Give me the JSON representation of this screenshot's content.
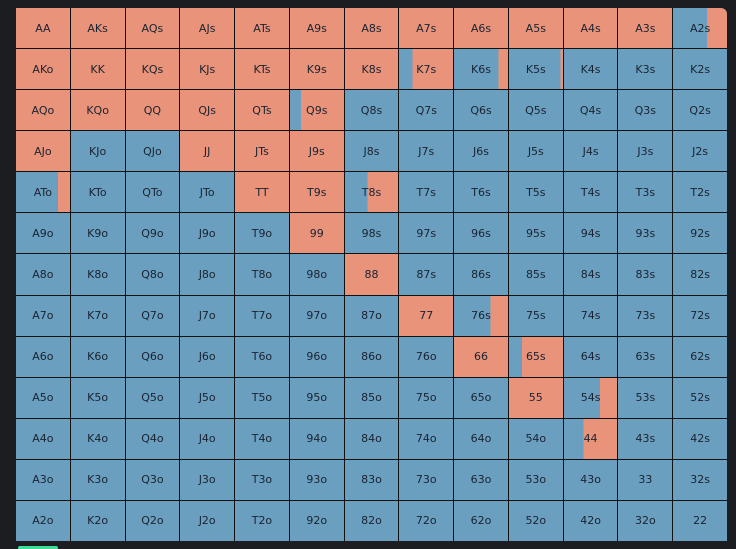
{
  "colors": {
    "raise": "#e8937a",
    "fold": "#6a9fc0"
  },
  "grid": [
    [
      {
        "label": "AA",
        "raise": 1
      },
      {
        "label": "AKs",
        "raise": 1
      },
      {
        "label": "AQs",
        "raise": 1
      },
      {
        "label": "AJs",
        "raise": 1
      },
      {
        "label": "ATs",
        "raise": 1
      },
      {
        "label": "A9s",
        "raise": 1
      },
      {
        "label": "A8s",
        "raise": 1
      },
      {
        "label": "A7s",
        "raise": 1
      },
      {
        "label": "A6s",
        "raise": 1
      },
      {
        "label": "A5s",
        "raise": 1
      },
      {
        "label": "A4s",
        "raise": 1
      },
      {
        "label": "A3s",
        "raise": 1
      },
      {
        "label": "A2s",
        "raise": 0.37
      }
    ],
    [
      {
        "label": "AKo",
        "raise": 1
      },
      {
        "label": "KK",
        "raise": 1
      },
      {
        "label": "KQs",
        "raise": 1
      },
      {
        "label": "KJs",
        "raise": 1
      },
      {
        "label": "KTs",
        "raise": 1
      },
      {
        "label": "K9s",
        "raise": 1
      },
      {
        "label": "K8s",
        "raise": 1
      },
      {
        "label": "K7s",
        "raise": 0.75
      },
      {
        "label": "K6s",
        "raise": 0.18
      },
      {
        "label": "K5s",
        "raise": 0.05
      },
      {
        "label": "K4s",
        "raise": 0
      },
      {
        "label": "K3s",
        "raise": 0
      },
      {
        "label": "K2s",
        "raise": 0
      }
    ],
    [
      {
        "label": "AQo",
        "raise": 1
      },
      {
        "label": "KQo",
        "raise": 1
      },
      {
        "label": "QQ",
        "raise": 1
      },
      {
        "label": "QJs",
        "raise": 1
      },
      {
        "label": "QTs",
        "raise": 1
      },
      {
        "label": "Q9s",
        "raise": 0.8
      },
      {
        "label": "Q8s",
        "raise": 0
      },
      {
        "label": "Q7s",
        "raise": 0
      },
      {
        "label": "Q6s",
        "raise": 0
      },
      {
        "label": "Q5s",
        "raise": 0
      },
      {
        "label": "Q4s",
        "raise": 0
      },
      {
        "label": "Q3s",
        "raise": 0
      },
      {
        "label": "Q2s",
        "raise": 0
      }
    ],
    [
      {
        "label": "AJo",
        "raise": 1
      },
      {
        "label": "KJo",
        "raise": 0
      },
      {
        "label": "QJo",
        "raise": 0
      },
      {
        "label": "JJ",
        "raise": 1
      },
      {
        "label": "JTs",
        "raise": 1
      },
      {
        "label": "J9s",
        "raise": 1
      },
      {
        "label": "J8s",
        "raise": 0
      },
      {
        "label": "J7s",
        "raise": 0
      },
      {
        "label": "J6s",
        "raise": 0
      },
      {
        "label": "J5s",
        "raise": 0
      },
      {
        "label": "J4s",
        "raise": 0
      },
      {
        "label": "J3s",
        "raise": 0
      },
      {
        "label": "J2s",
        "raise": 0
      }
    ],
    [
      {
        "label": "ATo",
        "raise": 0.22
      },
      {
        "label": "KTo",
        "raise": 0
      },
      {
        "label": "QTo",
        "raise": 0
      },
      {
        "label": "JTo",
        "raise": 0
      },
      {
        "label": "TT",
        "raise": 1
      },
      {
        "label": "T9s",
        "raise": 1
      },
      {
        "label": "T8s",
        "raise": 0.58
      },
      {
        "label": "T7s",
        "raise": 0
      },
      {
        "label": "T6s",
        "raise": 0
      },
      {
        "label": "T5s",
        "raise": 0
      },
      {
        "label": "T4s",
        "raise": 0
      },
      {
        "label": "T3s",
        "raise": 0
      },
      {
        "label": "T2s",
        "raise": 0
      }
    ],
    [
      {
        "label": "A9o",
        "raise": 0
      },
      {
        "label": "K9o",
        "raise": 0
      },
      {
        "label": "Q9o",
        "raise": 0
      },
      {
        "label": "J9o",
        "raise": 0
      },
      {
        "label": "T9o",
        "raise": 0
      },
      {
        "label": "99",
        "raise": 1
      },
      {
        "label": "98s",
        "raise": 0
      },
      {
        "label": "97s",
        "raise": 0
      },
      {
        "label": "96s",
        "raise": 0
      },
      {
        "label": "95s",
        "raise": 0
      },
      {
        "label": "94s",
        "raise": 0
      },
      {
        "label": "93s",
        "raise": 0
      },
      {
        "label": "92s",
        "raise": 0
      }
    ],
    [
      {
        "label": "A8o",
        "raise": 0
      },
      {
        "label": "K8o",
        "raise": 0
      },
      {
        "label": "Q8o",
        "raise": 0
      },
      {
        "label": "J8o",
        "raise": 0
      },
      {
        "label": "T8o",
        "raise": 0
      },
      {
        "label": "98o",
        "raise": 0
      },
      {
        "label": "88",
        "raise": 1
      },
      {
        "label": "87s",
        "raise": 0
      },
      {
        "label": "86s",
        "raise": 0
      },
      {
        "label": "85s",
        "raise": 0
      },
      {
        "label": "84s",
        "raise": 0
      },
      {
        "label": "83s",
        "raise": 0
      },
      {
        "label": "82s",
        "raise": 0
      }
    ],
    [
      {
        "label": "A7o",
        "raise": 0
      },
      {
        "label": "K7o",
        "raise": 0
      },
      {
        "label": "Q7o",
        "raise": 0
      },
      {
        "label": "J7o",
        "raise": 0
      },
      {
        "label": "T7o",
        "raise": 0
      },
      {
        "label": "97o",
        "raise": 0
      },
      {
        "label": "87o",
        "raise": 0
      },
      {
        "label": "77",
        "raise": 1
      },
      {
        "label": "76s",
        "raise": 0.32
      },
      {
        "label": "75s",
        "raise": 0
      },
      {
        "label": "74s",
        "raise": 0
      },
      {
        "label": "73s",
        "raise": 0
      },
      {
        "label": "72s",
        "raise": 0
      }
    ],
    [
      {
        "label": "A6o",
        "raise": 0
      },
      {
        "label": "K6o",
        "raise": 0
      },
      {
        "label": "Q6o",
        "raise": 0
      },
      {
        "label": "J6o",
        "raise": 0
      },
      {
        "label": "T6o",
        "raise": 0
      },
      {
        "label": "96o",
        "raise": 0
      },
      {
        "label": "86o",
        "raise": 0
      },
      {
        "label": "76o",
        "raise": 0
      },
      {
        "label": "66",
        "raise": 1
      },
      {
        "label": "65s",
        "raise": 0.76
      },
      {
        "label": "64s",
        "raise": 0
      },
      {
        "label": "63s",
        "raise": 0
      },
      {
        "label": "62s",
        "raise": 0
      }
    ],
    [
      {
        "label": "A5o",
        "raise": 0
      },
      {
        "label": "K5o",
        "raise": 0
      },
      {
        "label": "Q5o",
        "raise": 0
      },
      {
        "label": "J5o",
        "raise": 0
      },
      {
        "label": "T5o",
        "raise": 0
      },
      {
        "label": "95o",
        "raise": 0
      },
      {
        "label": "85o",
        "raise": 0
      },
      {
        "label": "75o",
        "raise": 0
      },
      {
        "label": "65o",
        "raise": 0
      },
      {
        "label": "55",
        "raise": 1
      },
      {
        "label": "54s",
        "raise": 0.32
      },
      {
        "label": "53s",
        "raise": 0
      },
      {
        "label": "52s",
        "raise": 0
      }
    ],
    [
      {
        "label": "A4o",
        "raise": 0
      },
      {
        "label": "K4o",
        "raise": 0
      },
      {
        "label": "Q4o",
        "raise": 0
      },
      {
        "label": "J4o",
        "raise": 0
      },
      {
        "label": "T4o",
        "raise": 0
      },
      {
        "label": "94o",
        "raise": 0
      },
      {
        "label": "84o",
        "raise": 0
      },
      {
        "label": "74o",
        "raise": 0
      },
      {
        "label": "64o",
        "raise": 0
      },
      {
        "label": "54o",
        "raise": 0
      },
      {
        "label": "44",
        "raise": 0.63
      },
      {
        "label": "43s",
        "raise": 0
      },
      {
        "label": "42s",
        "raise": 0
      }
    ],
    [
      {
        "label": "A3o",
        "raise": 0
      },
      {
        "label": "K3o",
        "raise": 0
      },
      {
        "label": "Q3o",
        "raise": 0
      },
      {
        "label": "J3o",
        "raise": 0
      },
      {
        "label": "T3o",
        "raise": 0
      },
      {
        "label": "93o",
        "raise": 0
      },
      {
        "label": "83o",
        "raise": 0
      },
      {
        "label": "73o",
        "raise": 0
      },
      {
        "label": "63o",
        "raise": 0
      },
      {
        "label": "53o",
        "raise": 0
      },
      {
        "label": "43o",
        "raise": 0
      },
      {
        "label": "33",
        "raise": 0
      },
      {
        "label": "32s",
        "raise": 0
      }
    ],
    [
      {
        "label": "A2o",
        "raise": 0
      },
      {
        "label": "K2o",
        "raise": 0
      },
      {
        "label": "Q2o",
        "raise": 0
      },
      {
        "label": "J2o",
        "raise": 0
      },
      {
        "label": "T2o",
        "raise": 0
      },
      {
        "label": "92o",
        "raise": 0
      },
      {
        "label": "82o",
        "raise": 0
      },
      {
        "label": "72o",
        "raise": 0
      },
      {
        "label": "62o",
        "raise": 0
      },
      {
        "label": "52o",
        "raise": 0
      },
      {
        "label": "42o",
        "raise": 0
      },
      {
        "label": "32o",
        "raise": 0
      },
      {
        "label": "22",
        "raise": 0
      }
    ]
  ]
}
